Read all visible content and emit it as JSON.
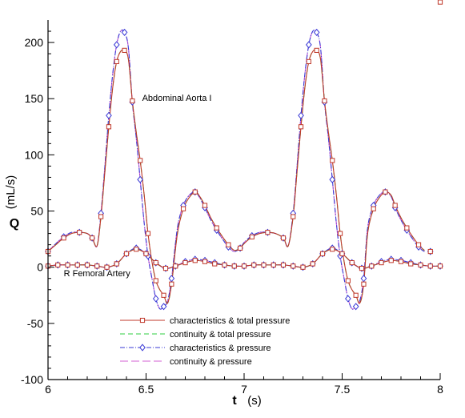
{
  "chart_data": {
    "type": "line",
    "xlabel": "t",
    "xunit": "(s)",
    "ylabel": "Q",
    "yunit": "(mL/s)",
    "xlim": [
      6,
      8
    ],
    "ylim": [
      -100,
      220
    ],
    "xticks": [
      6,
      6.5,
      7,
      7.5,
      8
    ],
    "xtick_labels": [
      "6",
      "6.5",
      "7",
      "7.5",
      "8"
    ],
    "yticks": [
      -100,
      -50,
      0,
      50,
      100,
      150,
      200
    ],
    "ytick_labels": [
      "-100",
      "-50",
      "0",
      "50",
      "100",
      "150",
      "200"
    ],
    "grid": false,
    "legend_position": "bottom-center",
    "annotations": [
      {
        "text": "Abdominal Aorta I",
        "x": 6.48,
        "y": 148
      },
      {
        "text": "R Femoral Artery",
        "x": 6.08,
        "y": -8
      }
    ],
    "styles": [
      {
        "color": "#c0392b",
        "dash": "",
        "marker": "square"
      },
      {
        "color": "#2ecc40",
        "dash": "6,4",
        "marker": "none"
      },
      {
        "color": "#3a3ad6",
        "dash": "6,2,1,2",
        "marker": "diamond"
      },
      {
        "color": "#d35fd3",
        "dash": "10,4",
        "marker": "none"
      }
    ],
    "series_labels": [
      "characteristics & total pressure",
      "continuity & total pressure",
      "characteristics & pressure",
      "continuity & pressure"
    ],
    "curves": [
      {
        "vessel": "Abdominal Aorta I",
        "x": [
          6.0,
          6.04,
          6.08,
          6.12,
          6.16,
          6.2,
          6.225,
          6.25,
          6.27,
          6.29,
          6.31,
          6.33,
          6.35,
          6.37,
          6.39,
          6.41,
          6.43,
          6.45,
          6.47,
          6.49,
          6.51,
          6.53,
          6.55,
          6.57,
          6.59,
          6.61,
          6.63,
          6.66,
          6.69,
          6.72,
          6.75,
          6.77,
          6.8,
          6.83,
          6.86,
          6.89,
          6.92,
          6.95,
          6.98,
          7.0,
          7.04,
          7.08,
          7.12,
          7.16,
          7.2,
          7.225,
          7.25,
          7.27,
          7.29,
          7.31,
          7.33,
          7.35,
          7.37,
          7.39,
          7.41,
          7.43,
          7.45,
          7.47,
          7.49,
          7.51,
          7.53,
          7.55,
          7.57,
          7.59,
          7.61,
          7.63,
          7.66,
          7.69,
          7.72,
          7.75,
          7.77,
          7.8,
          7.83,
          7.86,
          7.89,
          7.92,
          7.95,
          7.98,
          8.0
        ],
        "series": [
          {
            "values": [
              14,
              20,
              26,
              30,
              31,
              30,
              26,
              19,
              45,
              85,
              125,
              160,
              183,
              192,
              193,
              185,
              148,
              120,
              95,
              65,
              30,
              5,
              -12,
              -20,
              -25,
              -32,
              -15,
              30,
              52,
              62,
              67,
              64,
              55,
              44,
              35,
              27,
              20,
              15,
              17,
              21,
              27,
              30,
              31,
              30,
              26,
              19,
              45,
              85,
              125,
              160,
              183,
              192,
              193,
              185,
              148,
              120,
              95,
              65,
              30,
              5,
              -12,
              -20,
              -25,
              -32,
              -15,
              30,
              52,
              62,
              67,
              64,
              55,
              44,
              35,
              27,
              20,
              15,
              14
            ]
          },
          {
            "values": [
              14,
              20,
              26,
              30,
              31,
              30,
              26,
              19,
              45,
              85,
              125,
              160,
              183,
              192,
              193,
              185,
              148,
              120,
              95,
              65,
              30,
              5,
              -12,
              -20,
              -25,
              -32,
              -15,
              30,
              52,
              62,
              67,
              64,
              55,
              44,
              35,
              27,
              20,
              15,
              17,
              21,
              27,
              30,
              31,
              30,
              26,
              19,
              45,
              85,
              125,
              160,
              183,
              192,
              193,
              185,
              148,
              120,
              95,
              65,
              30,
              5,
              -12,
              -20,
              -25,
              -32,
              -15,
              30,
              52,
              62,
              67,
              64,
              55,
              44,
              35,
              27,
              20,
              15,
              14
            ]
          },
          {
            "values": [
              14,
              21,
              27,
              31,
              31,
              30,
              26,
              19,
              48,
              90,
              135,
              172,
              198,
              210,
              209,
              195,
              147,
              115,
              78,
              40,
              10,
              -10,
              -28,
              -37,
              -35,
              -30,
              -10,
              35,
              55,
              64,
              67,
              63,
              53,
              42,
              33,
              25,
              18,
              14,
              17,
              22,
              28,
              31,
              31,
              30,
              26,
              19,
              48,
              90,
              135,
              172,
              198,
              210,
              209,
              195,
              147,
              115,
              78,
              40,
              10,
              -10,
              -28,
              -37,
              -35,
              -30,
              -10,
              35,
              55,
              64,
              67,
              63,
              53,
              42,
              33,
              25,
              18,
              14,
              14
            ]
          },
          {
            "values": [
              14,
              21,
              27,
              31,
              31,
              30,
              26,
              19,
              48,
              90,
              135,
              172,
              198,
              210,
              209,
              195,
              147,
              115,
              78,
              40,
              10,
              -10,
              -28,
              -37,
              -35,
              -30,
              -10,
              35,
              55,
              64,
              67,
              63,
              53,
              42,
              33,
              25,
              18,
              14,
              17,
              22,
              28,
              31,
              31,
              30,
              26,
              19,
              48,
              90,
              135,
              172,
              198,
              210,
              209,
              195,
              147,
              115,
              78,
              40,
              10,
              -10,
              -28,
              -37,
              -35,
              -30,
              -10,
              35,
              55,
              64,
              67,
              63,
              53,
              42,
              33,
              25,
              18,
              14,
              14
            ]
          }
        ]
      },
      {
        "vessel": "R Femoral Artery",
        "x": [
          6.0,
          6.05,
          6.1,
          6.15,
          6.2,
          6.25,
          6.3,
          6.35,
          6.4,
          6.45,
          6.5,
          6.55,
          6.6,
          6.65,
          6.7,
          6.75,
          6.8,
          6.85,
          6.9,
          6.95,
          7.0,
          7.05,
          7.1,
          7.15,
          7.2,
          7.25,
          7.3,
          7.35,
          7.4,
          7.45,
          7.5,
          7.55,
          7.6,
          7.65,
          7.7,
          7.75,
          7.8,
          7.85,
          7.9,
          7.95,
          8.0
        ],
        "series": [
          {
            "values": [
              1,
              2,
              2,
              2,
              2,
              1,
              0,
              3,
              12,
              16,
              12,
              4,
              -1,
              1,
              4,
              6,
              5,
              3,
              2,
              1,
              1,
              2,
              2,
              2,
              2,
              1,
              0,
              3,
              12,
              16,
              12,
              4,
              -1,
              1,
              4,
              6,
              5,
              3,
              2,
              1,
              1
            ]
          },
          {
            "values": [
              1,
              2,
              2,
              2,
              2,
              1,
              0,
              3,
              12,
              16,
              12,
              4,
              -1,
              1,
              4,
              6,
              5,
              3,
              2,
              1,
              1,
              2,
              2,
              2,
              2,
              1,
              0,
              3,
              12,
              16,
              12,
              4,
              -1,
              1,
              4,
              6,
              5,
              3,
              2,
              1,
              1
            ]
          },
          {
            "values": [
              1,
              2,
              2,
              2,
              2,
              1,
              0,
              3,
              12,
              17,
              12,
              4,
              -1,
              1,
              5,
              7,
              6,
              4,
              2,
              1,
              1,
              2,
              2,
              2,
              2,
              1,
              0,
              3,
              12,
              17,
              12,
              4,
              -1,
              1,
              5,
              7,
              6,
              4,
              2,
              1,
              1
            ]
          },
          {
            "values": [
              1,
              2,
              2,
              2,
              2,
              1,
              0,
              3,
              12,
              17,
              12,
              4,
              -1,
              1,
              5,
              7,
              6,
              4,
              2,
              1,
              1,
              2,
              2,
              2,
              2,
              1,
              0,
              3,
              12,
              17,
              12,
              4,
              -1,
              1,
              5,
              7,
              6,
              4,
              2,
              1,
              1
            ]
          }
        ]
      }
    ]
  }
}
